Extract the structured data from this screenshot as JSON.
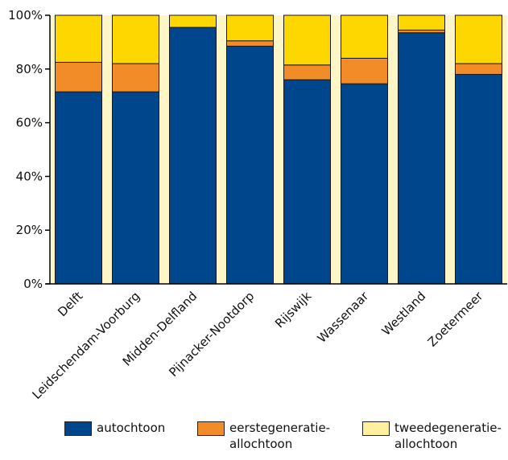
{
  "colors": {
    "autochtoon": "#00468C",
    "eerstegeneratie": "#F28C28",
    "tweedegeneratie": "#FFD700",
    "tweedegeneratie_legend": "#FFF0A0",
    "background": "#FFF6C8"
  },
  "chart_data": {
    "type": "bar",
    "stacked": true,
    "categories": [
      "Delft",
      "Leidschendam-Voorburg",
      "Midden-Delfland",
      "Pijnacker-Nootdorp",
      "Rijswijk",
      "Wassenaar",
      "Westland",
      "Zoetermeer"
    ],
    "series": [
      {
        "name": "autochtoon",
        "values": [
          71.5,
          71.5,
          95.5,
          88.5,
          76,
          74.5,
          93.5,
          78
        ]
      },
      {
        "name": "eerstegeneratie-allochtoon",
        "values": [
          11,
          10.5,
          0,
          2,
          5.5,
          9.5,
          1,
          4
        ]
      },
      {
        "name": "tweedegeneratie-allochtoon",
        "values": [
          17.5,
          18,
          4.5,
          9.5,
          18.5,
          16,
          5.5,
          18
        ]
      }
    ],
    "yticks": [
      "0%",
      "20%",
      "40%",
      "60%",
      "80%",
      "100%"
    ],
    "ylim": [
      0,
      100
    ],
    "grid": false,
    "legend": "bottom"
  },
  "legend": {
    "items": [
      {
        "line1": "autochtoon",
        "line2": ""
      },
      {
        "line1": "eerstegeneratie-",
        "line2": "allochtoon"
      },
      {
        "line1": "tweedegeneratie-",
        "line2": "allochtoon"
      }
    ]
  }
}
